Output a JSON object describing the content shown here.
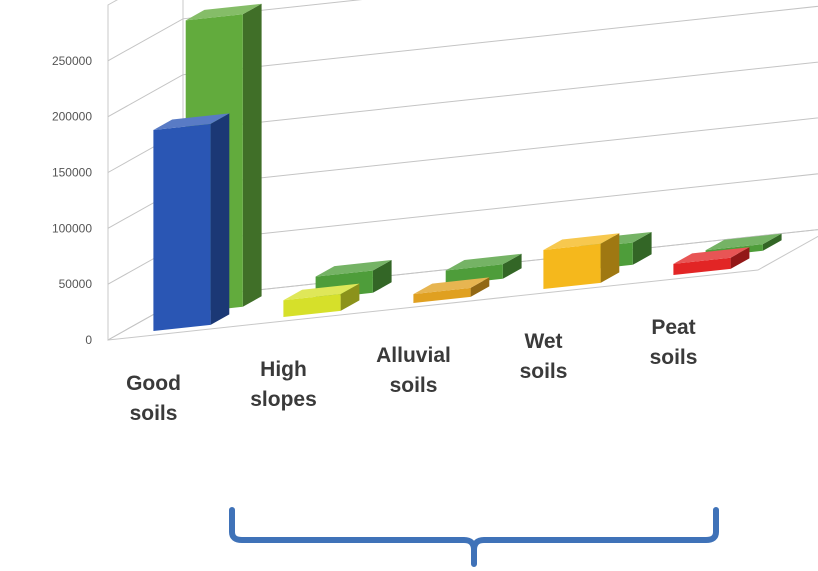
{
  "chart_data": {
    "type": "bar",
    "style": "3d-clustered-depth",
    "categories": [
      [
        "Good",
        "soils"
      ],
      [
        "High",
        "slopes"
      ],
      [
        "Alluvial",
        "soils"
      ],
      [
        "Wet",
        "soils"
      ],
      [
        "Peat",
        "soils"
      ]
    ],
    "series": [
      {
        "values": [
          180000,
          15000,
          8000,
          35000,
          10000
        ],
        "colors": [
          "#2a56b4",
          "#d6e02a",
          "#e0a020",
          "#f5b81c",
          "#e22525"
        ]
      },
      {
        "values": [
          262000,
          20000,
          13000,
          20000,
          6000
        ],
        "colors": [
          "#62ab3d",
          "#4e9d3a",
          "#4e9d3a",
          "#4e9d3a",
          "#4e9d3a"
        ]
      }
    ],
    "yticks": [
      "0",
      "50000",
      "100000",
      "150000",
      "200000",
      "250000"
    ],
    "ylim": [
      0,
      300000
    ],
    "grid": true,
    "brace_under_categories": [
      2,
      5
    ]
  }
}
